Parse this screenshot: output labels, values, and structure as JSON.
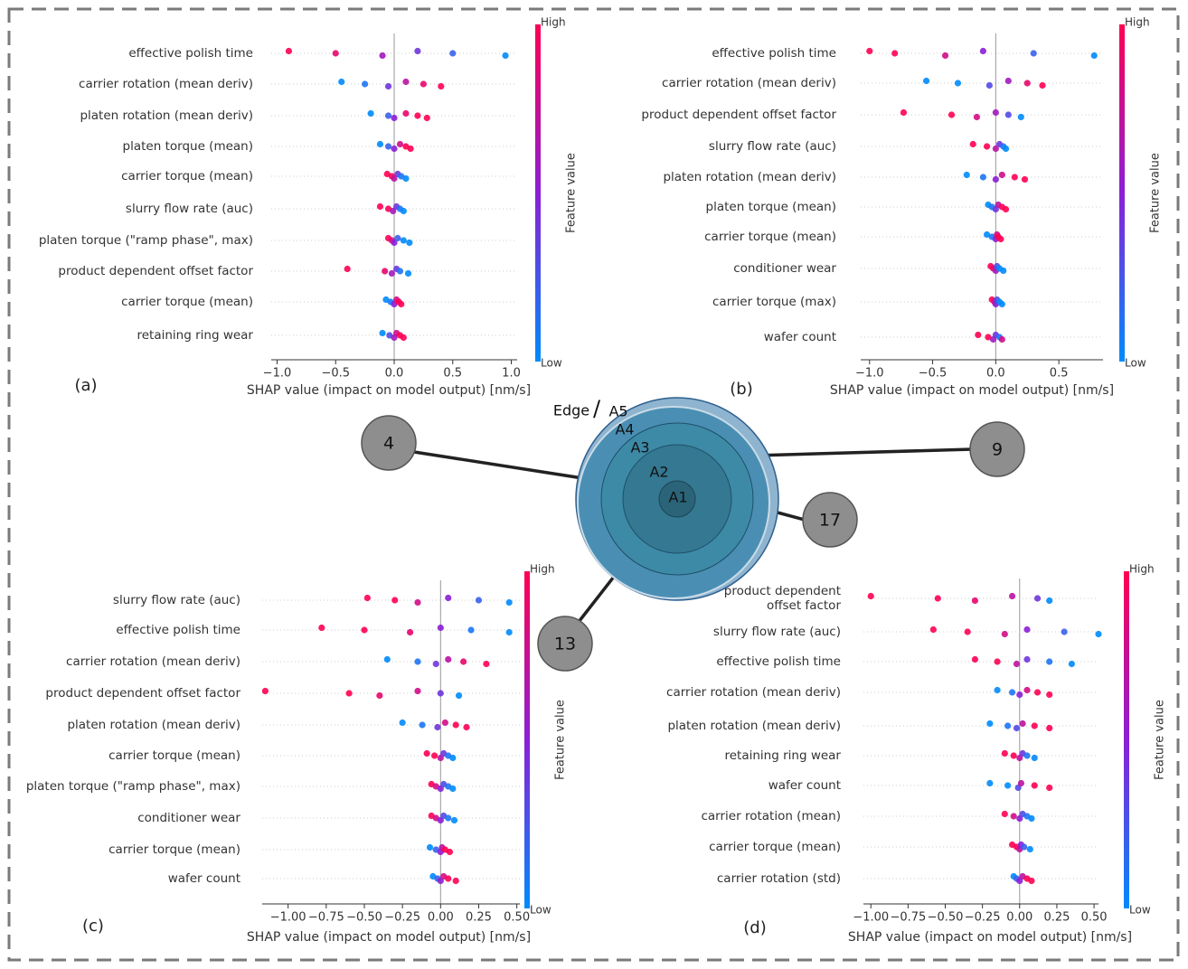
{
  "chart_data": [
    {
      "type": "beeswarm",
      "label": "(a)",
      "xlabel": "SHAP value (impact on model output) [nm/s]",
      "colorbar": {
        "title": "Feature value",
        "high": "High",
        "low": "Low"
      },
      "colormap": [
        "#008bfb",
        "#8b1fd6",
        "#ff0052"
      ],
      "xlim": [
        -1.05,
        1.05
      ],
      "xticks": [
        {
          "value": -1,
          "label": "−1.0"
        },
        {
          "value": -0.5,
          "label": "−0.5"
        },
        {
          "value": 0,
          "label": "0.0"
        },
        0.5,
        {
          "value": 1,
          "label": "1.0"
        }
      ],
      "categories": [
        "effective polish time",
        "carrier rotation (mean deriv)",
        "platen rotation (mean deriv)",
        "platen torque (mean)",
        "carrier torque (mean)",
        "slurry flow rate (auc)",
        "platen torque (\"ramp phase\", max)",
        "product dependent offset factor",
        "carrier torque (mean)",
        "retaining ring wear"
      ],
      "values": [
        [
          -0.9,
          -0.5,
          -0.1,
          0.2,
          0.5,
          0.95
        ],
        [
          -0.45,
          -0.25,
          -0.05,
          0.1,
          0.25,
          0.4
        ],
        [
          -0.2,
          -0.05,
          0,
          0.1,
          0.2,
          0.28
        ],
        [
          -0.12,
          -0.05,
          0,
          0.05,
          0.1,
          0.14
        ],
        [
          -0.06,
          -0.02,
          0,
          0.03,
          0.06,
          0.1
        ],
        [
          -0.12,
          -0.05,
          -0.01,
          0.02,
          0.05,
          0.08
        ],
        [
          -0.05,
          -0.02,
          0,
          0.03,
          0.08,
          0.13
        ],
        [
          -0.4,
          -0.08,
          -0.02,
          0.02,
          0.05,
          0.12
        ],
        [
          -0.07,
          -0.03,
          0,
          0.02,
          0.04,
          0.06
        ],
        [
          -0.1,
          -0.04,
          0,
          0.02,
          0.05,
          0.08
        ]
      ],
      "hues": [
        [
          1,
          0.9,
          0.6,
          0.4,
          0.2,
          0
        ],
        [
          0,
          0.1,
          0.4,
          0.7,
          0.9,
          1
        ],
        [
          0,
          0.2,
          0.5,
          0.9,
          1,
          1
        ],
        [
          0,
          0.2,
          0.5,
          0.8,
          1,
          1
        ],
        [
          1,
          1,
          0.7,
          0.4,
          0.1,
          0
        ],
        [
          1,
          1,
          0.6,
          0.4,
          0.1,
          0
        ],
        [
          1,
          0.8,
          0.5,
          0.2,
          0,
          0
        ],
        [
          1,
          0.9,
          0.6,
          0.4,
          0.1,
          0
        ],
        [
          0,
          0.1,
          0.5,
          0.8,
          1,
          1
        ],
        [
          0,
          0.3,
          0.6,
          0.8,
          1,
          1
        ]
      ]
    },
    {
      "type": "beeswarm",
      "label": "(b)",
      "xlabel": "SHAP value (impact on model output) [nm/s]",
      "colorbar": {
        "title": "Feature value",
        "high": "High",
        "low": "Low"
      },
      "colormap": [
        "#008bfb",
        "#8b1fd6",
        "#ff0052"
      ],
      "xlim": [
        -1.07,
        0.85
      ],
      "xticks": [
        {
          "value": -1,
          "label": "−1.0"
        },
        {
          "value": -0.5,
          "label": "−0.5"
        },
        {
          "value": 0,
          "label": "0.0"
        },
        0.5
      ],
      "categories": [
        "effective polish time",
        "carrier rotation (mean deriv)",
        "product dependent offset factor",
        "slurry flow rate (auc)",
        "platen rotation (mean deriv)",
        "platen torque (mean)",
        "carrier torque (mean)",
        "conditioner wear",
        "carrier torque (max)",
        "wafer count"
      ],
      "values": [
        [
          -1.0,
          -0.8,
          -0.4,
          -0.1,
          0.3,
          0.78
        ],
        [
          -0.55,
          -0.3,
          -0.05,
          0.1,
          0.25,
          0.37
        ],
        [
          -0.73,
          -0.35,
          -0.15,
          0,
          0.1,
          0.2
        ],
        [
          -0.18,
          -0.07,
          0,
          0.03,
          0.06,
          0.08
        ],
        [
          -0.23,
          -0.1,
          0,
          0.05,
          0.15,
          0.23
        ],
        [
          -0.06,
          -0.03,
          0,
          0.02,
          0.05,
          0.08
        ],
        [
          -0.07,
          -0.03,
          0,
          0.01,
          0.02,
          0.04
        ],
        [
          -0.04,
          -0.02,
          0,
          0.01,
          0.03,
          0.06
        ],
        [
          -0.03,
          -0.01,
          0,
          0.01,
          0.03,
          0.05
        ],
        [
          -0.14,
          -0.06,
          -0.02,
          0,
          0.03,
          0.05
        ]
      ],
      "hues": [
        [
          1,
          1,
          0.8,
          0.5,
          0.2,
          0
        ],
        [
          0,
          0,
          0.3,
          0.6,
          0.9,
          1
        ],
        [
          1,
          1,
          0.8,
          0.6,
          0.3,
          0
        ],
        [
          1,
          1,
          0.7,
          0.4,
          0.1,
          0
        ],
        [
          0,
          0.1,
          0.5,
          0.8,
          1,
          1
        ],
        [
          0,
          0.1,
          0.4,
          0.7,
          1,
          1
        ],
        [
          0,
          0.1,
          0.5,
          0.8,
          1,
          1
        ],
        [
          1,
          0.9,
          0.6,
          0.3,
          0,
          0
        ],
        [
          1,
          0.8,
          0.5,
          0.3,
          0,
          0
        ],
        [
          1,
          1,
          0.6,
          0.4,
          0.1,
          0.8
        ]
      ]
    },
    {
      "type": "beeswarm",
      "label": "(c)",
      "xlabel": "SHAP value (impact on model output) [nm/s]",
      "colorbar": {
        "title": "Feature value",
        "high": "High",
        "low": "Low"
      },
      "colormap": [
        "#008bfb",
        "#8b1fd6",
        "#ff0052"
      ],
      "xlim": [
        -1.17,
        0.52
      ],
      "xticks": [
        {
          "value": -1,
          "label": "−1.00"
        },
        {
          "value": -0.75,
          "label": "−0.75"
        },
        {
          "value": -0.5,
          "label": "−0.50"
        },
        {
          "value": -0.25,
          "label": "−0.25"
        },
        {
          "value": 0,
          "label": "0.00"
        },
        0.25,
        {
          "value": 0.5,
          "label": "0.50"
        }
      ],
      "categories": [
        "slurry flow rate (auc)",
        "effective polish time",
        "carrier rotation (mean deriv)",
        "product dependent offset factor",
        "platen rotation (mean deriv)",
        "carrier torque (mean)",
        "platen torque (\"ramp phase\", max)",
        "conditioner wear",
        "carrier torque (mean)",
        "wafer count"
      ],
      "values": [
        [
          -0.48,
          -0.3,
          -0.15,
          0.05,
          0.25,
          0.45
        ],
        [
          -0.78,
          -0.5,
          -0.2,
          0,
          0.2,
          0.45
        ],
        [
          -0.35,
          -0.15,
          -0.03,
          0.05,
          0.15,
          0.3
        ],
        [
          -1.15,
          -0.6,
          -0.4,
          -0.15,
          0,
          0.12
        ],
        [
          -0.25,
          -0.12,
          -0.02,
          0.03,
          0.1,
          0.17
        ],
        [
          -0.09,
          -0.04,
          0,
          0.02,
          0.05,
          0.08
        ],
        [
          -0.06,
          -0.03,
          0,
          0.02,
          0.05,
          0.08
        ],
        [
          -0.06,
          -0.03,
          0,
          0.02,
          0.05,
          0.09
        ],
        [
          -0.07,
          -0.03,
          0,
          0.01,
          0.03,
          0.06
        ],
        [
          -0.05,
          -0.02,
          0,
          0.02,
          0.05,
          0.1
        ]
      ],
      "hues": [
        [
          1,
          1,
          0.8,
          0.5,
          0.2,
          0
        ],
        [
          1,
          1,
          0.9,
          0.5,
          0.1,
          0
        ],
        [
          0,
          0.1,
          0.4,
          0.7,
          0.9,
          1
        ],
        [
          1,
          1,
          0.9,
          0.8,
          0.4,
          0
        ],
        [
          0,
          0.1,
          0.4,
          0.8,
          1,
          1
        ],
        [
          1,
          1,
          0.7,
          0.4,
          0.1,
          0
        ],
        [
          1,
          0.8,
          0.5,
          0.3,
          0.1,
          0
        ],
        [
          1,
          0.8,
          0.5,
          0.3,
          0.1,
          0
        ],
        [
          0,
          0.2,
          0.5,
          0.7,
          1,
          1
        ],
        [
          0,
          0.2,
          0.5,
          0.8,
          1,
          1
        ]
      ]
    },
    {
      "type": "beeswarm",
      "label": "(d)",
      "xlabel": "SHAP value (impact on model output) [nm/s]",
      "colorbar": {
        "title": "Feature value",
        "high": "High",
        "low": "Low"
      },
      "colormap": [
        "#008bfb",
        "#8b1fd6",
        "#ff0052"
      ],
      "xlim": [
        -1.05,
        0.53
      ],
      "xticks": [
        {
          "value": -1,
          "label": "−1.00"
        },
        {
          "value": -0.75,
          "label": "−0.75"
        },
        {
          "value": -0.5,
          "label": "−0.50"
        },
        {
          "value": -0.25,
          "label": "−0.25"
        },
        {
          "value": 0,
          "label": "0.00"
        },
        0.25,
        {
          "value": 0.5,
          "label": "0.50"
        }
      ],
      "categories": [
        "product dependent\noffset factor",
        "slurry flow rate (auc)",
        "effective polish time",
        "carrier rotation (mean deriv)",
        "platen rotation (mean deriv)",
        "retaining ring wear",
        "wafer count",
        "carrier rotation (mean)",
        "carrier torque (mean)",
        "carrier rotation (std)"
      ],
      "values": [
        [
          -1.0,
          -0.55,
          -0.3,
          -0.05,
          0.12,
          0.2
        ],
        [
          -0.58,
          -0.35,
          -0.1,
          0.05,
          0.3,
          0.53
        ],
        [
          -0.3,
          -0.15,
          -0.02,
          0.05,
          0.2,
          0.35
        ],
        [
          -0.15,
          -0.05,
          0,
          0.05,
          0.12,
          0.2
        ],
        [
          -0.2,
          -0.08,
          -0.02,
          0.02,
          0.1,
          0.2
        ],
        [
          -0.1,
          -0.04,
          0,
          0.02,
          0.05,
          0.1
        ],
        [
          -0.2,
          -0.08,
          -0.01,
          0.01,
          0.1,
          0.2
        ],
        [
          -0.1,
          -0.04,
          0,
          0.02,
          0.05,
          0.08
        ],
        [
          -0.05,
          -0.02,
          0,
          0.01,
          0.03,
          0.07
        ],
        [
          -0.04,
          -0.02,
          0,
          0.02,
          0.05,
          0.08
        ]
      ],
      "hues": [
        [
          1,
          1,
          0.9,
          0.7,
          0.4,
          0
        ],
        [
          1,
          1,
          0.8,
          0.5,
          0.2,
          0
        ],
        [
          1,
          1,
          0.7,
          0.4,
          0.1,
          0
        ],
        [
          0,
          0.1,
          0.5,
          0.8,
          1,
          1
        ],
        [
          0,
          0.1,
          0.3,
          0.7,
          1,
          1
        ],
        [
          1,
          1,
          0.7,
          0.4,
          0.1,
          0
        ],
        [
          0,
          0,
          0.3,
          0.7,
          1,
          1
        ],
        [
          1,
          0.8,
          0.5,
          0.3,
          0.1,
          0
        ],
        [
          1,
          1,
          0.7,
          0.5,
          0.2,
          0
        ],
        [
          0,
          0.2,
          0.5,
          0.7,
          1,
          1
        ]
      ]
    }
  ],
  "diagram": {
    "edge": "Edge",
    "separator": "/",
    "regions": [
      "A1",
      "A2",
      "A3",
      "A4",
      "A5"
    ],
    "nodes": [
      "4",
      "9",
      "17",
      "13"
    ]
  }
}
